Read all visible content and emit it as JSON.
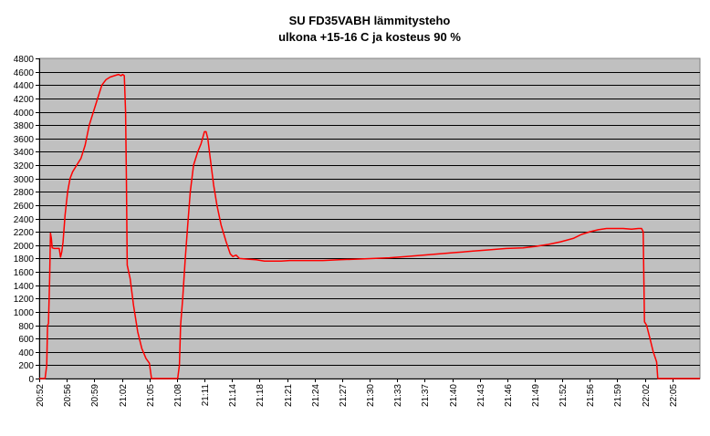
{
  "chart_data": {
    "type": "line",
    "title_line1": "SU FD35VABH lämmitysteho",
    "title_line2": "ulkona +15-16 C ja kosteus 90 %",
    "xlabel": "",
    "ylabel": "",
    "ylim": [
      0,
      4800
    ],
    "ytick_step": 200,
    "grid": true,
    "background_color": "#c0c0c0",
    "line_color": "#ff0000",
    "x_tick_labels": [
      "20:52",
      "20:56",
      "20:59",
      "21:02",
      "21:05",
      "21:08",
      "21:11",
      "21:14",
      "21:18",
      "21:21",
      "21:24",
      "21:27",
      "21:30",
      "21:33",
      "21:37",
      "21:40",
      "21:43",
      "21:46",
      "21:49",
      "21:52",
      "21:56",
      "21:59",
      "22:02",
      "22:05"
    ],
    "x_tick_minutes": [
      0,
      3.3,
      6.6,
      9.9,
      13.2,
      16.5,
      19.8,
      23.1,
      26.4,
      29.7,
      33.0,
      36.3,
      39.6,
      42.9,
      46.2,
      49.5,
      52.8,
      56.1,
      59.4,
      62.7,
      66.0,
      69.3,
      72.6,
      75.9
    ],
    "x_range_minutes": [
      0,
      79.2
    ],
    "series": [
      {
        "points": [
          [
            0,
            0
          ],
          [
            0.7,
            0
          ],
          [
            0.9,
            200
          ],
          [
            1.0,
            800
          ],
          [
            1.1,
            820
          ],
          [
            1.25,
            1500
          ],
          [
            1.35,
            2180
          ],
          [
            1.45,
            2100
          ],
          [
            1.55,
            1960
          ],
          [
            1.8,
            1950
          ],
          [
            2.2,
            1950
          ],
          [
            2.4,
            1950
          ],
          [
            2.55,
            1820
          ],
          [
            2.7,
            1900
          ],
          [
            2.85,
            2050
          ],
          [
            3.1,
            2450
          ],
          [
            3.4,
            2800
          ],
          [
            3.7,
            3000
          ],
          [
            4.0,
            3100
          ],
          [
            4.5,
            3200
          ],
          [
            5.0,
            3300
          ],
          [
            5.5,
            3500
          ],
          [
            6.0,
            3800
          ],
          [
            6.5,
            4000
          ],
          [
            7.0,
            4200
          ],
          [
            7.5,
            4400
          ],
          [
            8.0,
            4480
          ],
          [
            8.5,
            4520
          ],
          [
            9.0,
            4540
          ],
          [
            9.5,
            4560
          ],
          [
            9.8,
            4540
          ],
          [
            10.0,
            4560
          ],
          [
            10.2,
            4540
          ],
          [
            10.35,
            4000
          ],
          [
            10.45,
            3000
          ],
          [
            10.55,
            1700
          ],
          [
            10.9,
            1500
          ],
          [
            11.3,
            1100
          ],
          [
            11.8,
            700
          ],
          [
            12.3,
            450
          ],
          [
            12.8,
            300
          ],
          [
            13.2,
            230
          ],
          [
            13.35,
            100
          ],
          [
            13.45,
            0
          ],
          [
            16.6,
            0
          ],
          [
            16.8,
            200
          ],
          [
            16.95,
            800
          ],
          [
            17.2,
            1200
          ],
          [
            17.5,
            1800
          ],
          [
            17.8,
            2300
          ],
          [
            18.1,
            2800
          ],
          [
            18.5,
            3200
          ],
          [
            19.0,
            3400
          ],
          [
            19.4,
            3520
          ],
          [
            19.8,
            3700
          ],
          [
            20.0,
            3700
          ],
          [
            20.2,
            3600
          ],
          [
            20.5,
            3300
          ],
          [
            20.9,
            2900
          ],
          [
            21.3,
            2600
          ],
          [
            21.8,
            2300
          ],
          [
            22.4,
            2050
          ],
          [
            22.9,
            1870
          ],
          [
            23.2,
            1830
          ],
          [
            23.6,
            1850
          ],
          [
            24.0,
            1800
          ],
          [
            25.0,
            1790
          ],
          [
            26.0,
            1780
          ],
          [
            27.0,
            1760
          ],
          [
            28.0,
            1760
          ],
          [
            29.0,
            1760
          ],
          [
            30.0,
            1770
          ],
          [
            32.0,
            1770
          ],
          [
            34.0,
            1770
          ],
          [
            36.0,
            1780
          ],
          [
            38.0,
            1790
          ],
          [
            40.0,
            1800
          ],
          [
            42.0,
            1810
          ],
          [
            44.0,
            1830
          ],
          [
            46.0,
            1850
          ],
          [
            48.0,
            1870
          ],
          [
            50.0,
            1890
          ],
          [
            52.0,
            1910
          ],
          [
            54.0,
            1930
          ],
          [
            56.0,
            1950
          ],
          [
            58.0,
            1960
          ],
          [
            59.4,
            1980
          ],
          [
            61.0,
            2010
          ],
          [
            62.5,
            2050
          ],
          [
            64.0,
            2100
          ],
          [
            65.0,
            2160
          ],
          [
            66.0,
            2200
          ],
          [
            67.0,
            2230
          ],
          [
            68.0,
            2250
          ],
          [
            69.0,
            2250
          ],
          [
            70.0,
            2250
          ],
          [
            71.0,
            2240
          ],
          [
            71.8,
            2250
          ],
          [
            72.2,
            2250
          ],
          [
            72.4,
            2200
          ],
          [
            72.55,
            850
          ],
          [
            72.8,
            800
          ],
          [
            73.2,
            600
          ],
          [
            73.6,
            400
          ],
          [
            74.0,
            250
          ],
          [
            74.15,
            0
          ],
          [
            79.2,
            0
          ]
        ]
      }
    ]
  }
}
